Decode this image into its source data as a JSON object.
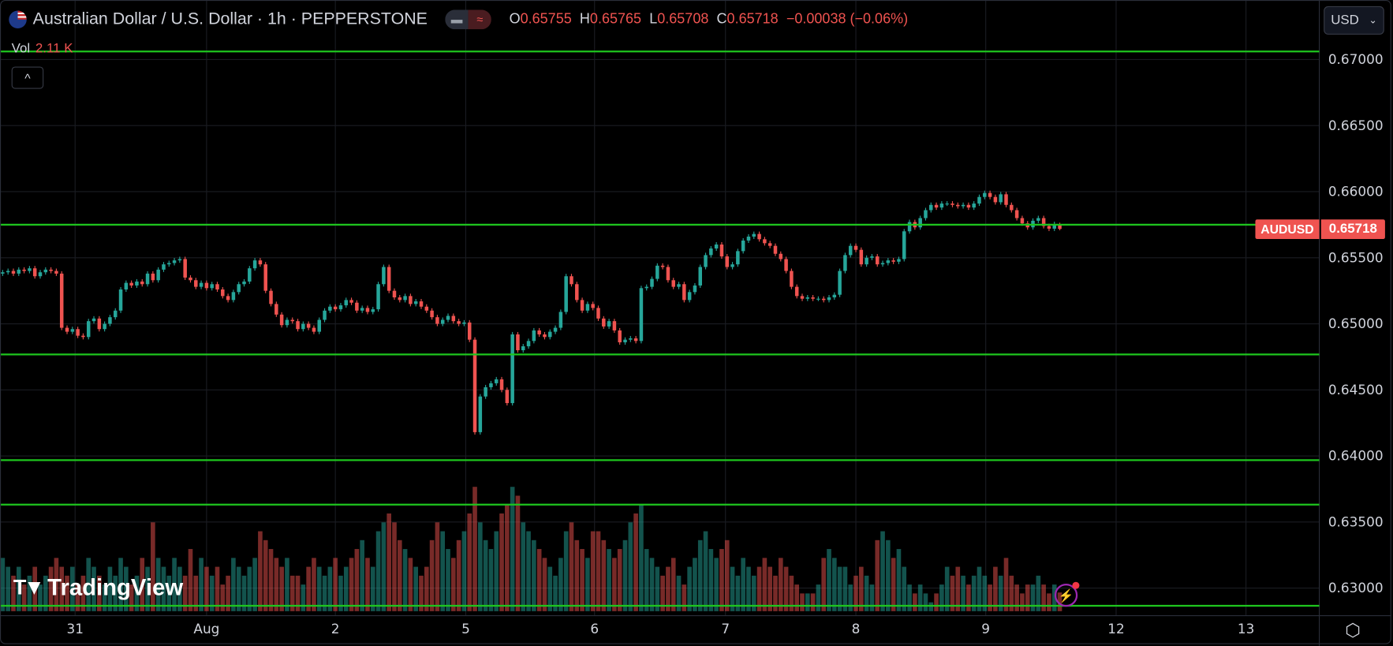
{
  "header": {
    "title": "Australian Dollar / U.S. Dollar · 1h · PEPPERSTONE",
    "pill_icons": [
      "minus-icon",
      "approx-icon"
    ],
    "ohlc": {
      "o_label": "O",
      "o": "0.65755",
      "h_label": "H",
      "h": "0.65765",
      "l_label": "L",
      "l": "0.65708",
      "c_label": "C",
      "c": "0.65718",
      "change": "−0.00038 (−0.06%)"
    },
    "vol_label": "Vol",
    "vol_value": "2.11 K",
    "collapse_icon": "^"
  },
  "currency_button": {
    "label": "USD",
    "icon": "chevron-down-icon"
  },
  "symbol_label": "AUDUSD",
  "last_price_label": "0.65718",
  "logo_text": "TradingView",
  "colors": {
    "up": "#26a69a",
    "down": "#ef5350",
    "hline": "#1ec51e",
    "grid": "#1a1c22",
    "background": "#000000"
  },
  "chart_data": {
    "type": "candlestick",
    "interval": "1h",
    "ylim": [
      0.6282,
      0.6738
    ],
    "y_ticks": [
      "0.67000",
      "0.66500",
      "0.66000",
      "0.65500",
      "0.65000",
      "0.64500",
      "0.64000",
      "0.63500",
      "0.63000"
    ],
    "y_tick_values": [
      0.67,
      0.665,
      0.66,
      0.655,
      0.65,
      0.645,
      0.64,
      0.635,
      0.63
    ],
    "x_ticks": [
      {
        "label": "31",
        "bar": 13.5
      },
      {
        "label": "Aug",
        "bar": 38
      },
      {
        "label": "2",
        "bar": 62
      },
      {
        "label": "5",
        "bar": 86.3
      },
      {
        "label": "6",
        "bar": 110.3
      },
      {
        "label": "7",
        "bar": 134.7
      },
      {
        "label": "8",
        "bar": 159
      },
      {
        "label": "9",
        "bar": 183.2
      },
      {
        "label": "12",
        "bar": 207.5
      },
      {
        "label": "13",
        "bar": 231.7
      }
    ],
    "horizontal_lines": [
      0.67061,
      0.6575,
      0.64768,
      0.63968,
      0.63632,
      0.62866
    ],
    "first_open": 0.6538,
    "closes": [
      0.6539,
      0.654,
      0.6538,
      0.6541,
      0.654,
      0.6542,
      0.6536,
      0.6539,
      0.6541,
      0.654,
      0.6538,
      0.6497,
      0.6494,
      0.6496,
      0.6491,
      0.649,
      0.6502,
      0.6504,
      0.6496,
      0.65,
      0.6505,
      0.651,
      0.6526,
      0.6531,
      0.6529,
      0.6532,
      0.653,
      0.6538,
      0.6533,
      0.6541,
      0.6545,
      0.6546,
      0.6548,
      0.6549,
      0.6535,
      0.6533,
      0.6528,
      0.6531,
      0.6527,
      0.653,
      0.6526,
      0.6521,
      0.6518,
      0.6524,
      0.653,
      0.6532,
      0.6542,
      0.6548,
      0.6545,
      0.6525,
      0.6515,
      0.6507,
      0.6499,
      0.6503,
      0.6502,
      0.6496,
      0.65,
      0.6497,
      0.6494,
      0.6503,
      0.651,
      0.6513,
      0.6511,
      0.6514,
      0.6518,
      0.6516,
      0.651,
      0.6512,
      0.6509,
      0.6511,
      0.653,
      0.6543,
      0.6525,
      0.652,
      0.6518,
      0.6521,
      0.6515,
      0.6517,
      0.6513,
      0.651,
      0.6505,
      0.65,
      0.6503,
      0.6506,
      0.6502,
      0.65,
      0.6501,
      0.6488,
      0.6418,
      0.6445,
      0.6452,
      0.6455,
      0.6458,
      0.645,
      0.644,
      0.6492,
      0.648,
      0.6483,
      0.6487,
      0.6495,
      0.6492,
      0.649,
      0.6494,
      0.6497,
      0.6509,
      0.6536,
      0.653,
      0.6518,
      0.651,
      0.6515,
      0.6512,
      0.6504,
      0.6498,
      0.6502,
      0.6495,
      0.6486,
      0.6488,
      0.6489,
      0.6487,
      0.6527,
      0.6528,
      0.6534,
      0.6544,
      0.6543,
      0.6533,
      0.6528,
      0.653,
      0.6518,
      0.6524,
      0.6529,
      0.6543,
      0.6552,
      0.6557,
      0.656,
      0.6551,
      0.6543,
      0.6545,
      0.6555,
      0.6563,
      0.6566,
      0.6568,
      0.6564,
      0.6561,
      0.6559,
      0.6553,
      0.6549,
      0.654,
      0.6528,
      0.6521,
      0.6519,
      0.652,
      0.6519,
      0.6519,
      0.6518,
      0.652,
      0.6522,
      0.654,
      0.6552,
      0.6559,
      0.6556,
      0.6545,
      0.655,
      0.6551,
      0.6545,
      0.6546,
      0.6548,
      0.6547,
      0.6549,
      0.657,
      0.6577,
      0.6573,
      0.658,
      0.6586,
      0.659,
      0.6588,
      0.6591,
      0.6591,
      0.659,
      0.6589,
      0.659,
      0.6588,
      0.6591,
      0.6596,
      0.6599,
      0.6596,
      0.6592,
      0.6598,
      0.659,
      0.6586,
      0.658,
      0.6576,
      0.6573,
      0.6578,
      0.658,
      0.6574,
      0.6572,
      0.65755,
      0.65718
    ],
    "volume_k": [
      6,
      5,
      4,
      5,
      3,
      4,
      5,
      3,
      4,
      5,
      6,
      5,
      4,
      5,
      3,
      4,
      6,
      5,
      4,
      3,
      5,
      4,
      6,
      5,
      3,
      4,
      6,
      5,
      10,
      6,
      5,
      4,
      6,
      5,
      4,
      7,
      4,
      6,
      5,
      4,
      5,
      3,
      4,
      6,
      5,
      4,
      5,
      6,
      9,
      8,
      7,
      6,
      5,
      6,
      4,
      4,
      3,
      5,
      6,
      5,
      4,
      5,
      6,
      4,
      5,
      6,
      7,
      8,
      6,
      5,
      9,
      10,
      11,
      10,
      8,
      7,
      6,
      5,
      4,
      5,
      8,
      10,
      9,
      7,
      6,
      8,
      9,
      11,
      14,
      10,
      8,
      7,
      9,
      11,
      12,
      14,
      13,
      10,
      9,
      8,
      7,
      6,
      5,
      4,
      6,
      9,
      10,
      8,
      7,
      6,
      9,
      9,
      8,
      7,
      6,
      7,
      8,
      10,
      11,
      12,
      7,
      6,
      5,
      4,
      5,
      6,
      4,
      3,
      5,
      6,
      8,
      9,
      7,
      6,
      7,
      8,
      5,
      4,
      6,
      5,
      4,
      5,
      6,
      5,
      4,
      6,
      5,
      4,
      3,
      2,
      2,
      2,
      3,
      6,
      7,
      6,
      5,
      5,
      3,
      4,
      5,
      4,
      3,
      8,
      9,
      8,
      6,
      7,
      5,
      3,
      2,
      3,
      2,
      1,
      2,
      3,
      5,
      4,
      5,
      4,
      3,
      4,
      5,
      4,
      3,
      5,
      4,
      6,
      4,
      3,
      2,
      3,
      3,
      4,
      3,
      2,
      3,
      2.11
    ]
  }
}
